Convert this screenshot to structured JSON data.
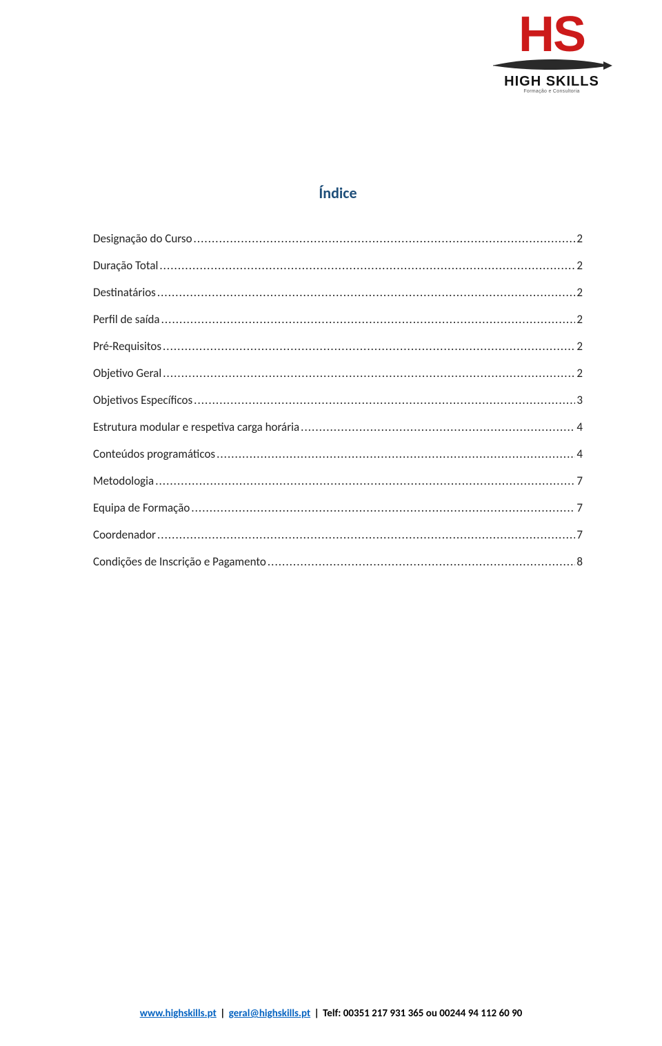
{
  "logo": {
    "hs": "HS",
    "brand": "HIGH SKILLS",
    "tagline": "Formação e Consultoria",
    "hs_color": "#cc1a1a",
    "text_color": "#111111",
    "swoosh_color": "#2a2a2a"
  },
  "title": {
    "text": "Índice",
    "color": "#1e4e79",
    "fontsize": 22
  },
  "toc": {
    "items": [
      {
        "label": "Designação do Curso",
        "page": "2"
      },
      {
        "label": "Duração Total",
        "page": "2"
      },
      {
        "label": "Destinatários",
        "page": "2"
      },
      {
        "label": "Perfil de saída",
        "page": "2"
      },
      {
        "label": "Pré-Requisitos",
        "page": "2"
      },
      {
        "label": "Objetivo Geral",
        "page": "2"
      },
      {
        "label": "Objetivos Específicos",
        "page": "3"
      },
      {
        "label": "Estrutura modular e respetiva carga horária",
        "page": "4"
      },
      {
        "label": "Conteúdos programáticos",
        "page": "4"
      },
      {
        "label": "Metodologia",
        "page": "7"
      },
      {
        "label": "Equipa de Formação",
        "page": "7"
      },
      {
        "label": "Coordenador",
        "page": "7"
      },
      {
        "label": "Condições de Inscrição e Pagamento",
        "page": "8"
      }
    ],
    "fontsize": 17,
    "text_color": "#222222"
  },
  "footer": {
    "url": "www.highskills.pt",
    "email": "geral@highskills.pt",
    "phone_text": "Telf: 00351 217 931 365 ou 00244 94 112 60 90",
    "sep": "|",
    "link_color": "#0563c1"
  }
}
